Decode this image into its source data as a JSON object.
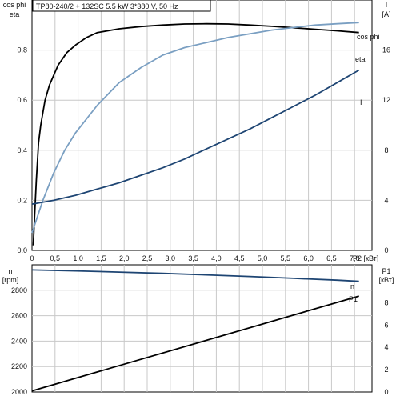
{
  "header": {
    "title": "TP80-240/2 + 132SC   5.5 kW   3*380 V, 50 Hz"
  },
  "colors": {
    "eta": "#000000",
    "cos_phi": "#7a9fc2",
    "current": "#1e4573",
    "speed": "#1e4573",
    "p1": "#000000",
    "grid": "#c8c8c8",
    "axis": "#000000"
  },
  "chart_data": [
    {
      "type": "line",
      "name": "performance",
      "grid": true,
      "xlabel": "P2 [кВт]",
      "xticks": [
        "0",
        "0,5",
        "1,0",
        "1,5",
        "2,0",
        "2,5",
        "3,0",
        "3,5",
        "4,0",
        "4,5",
        "5,0",
        "5,5",
        "6,0",
        "6,5",
        "7,0"
      ],
      "xlim": [
        0,
        7.8
      ],
      "left_axis": {
        "label_top": "cos phi",
        "label_bottom": "eta",
        "ylim": [
          0,
          1.0
        ],
        "ticks": [
          "0.0",
          "0.2",
          "0.4",
          "0.6",
          "0.8"
        ]
      },
      "right_axis": {
        "label_top": "I",
        "label_bottom": "[A]",
        "ylim": [
          0,
          20
        ],
        "ticks": [
          "0",
          "4",
          "8",
          "12",
          "16"
        ]
      },
      "series": [
        {
          "name": "eta",
          "label": "eta",
          "axis": "left",
          "color_key": "eta",
          "x": [
            0.03,
            0.05,
            0.1,
            0.15,
            0.2,
            0.3,
            0.4,
            0.5,
            0.6,
            0.8,
            1.0,
            1.25,
            1.5,
            2.0,
            2.5,
            3.0,
            3.5,
            4.0,
            4.5,
            5.0,
            5.5,
            6.0,
            6.5,
            7.0,
            7.5
          ],
          "y": [
            0.02,
            0.1,
            0.28,
            0.43,
            0.5,
            0.6,
            0.66,
            0.7,
            0.74,
            0.79,
            0.82,
            0.85,
            0.87,
            0.885,
            0.894,
            0.9,
            0.904,
            0.905,
            0.904,
            0.9,
            0.895,
            0.889,
            0.883,
            0.877,
            0.87
          ]
        },
        {
          "name": "cos phi",
          "label": "cos phi",
          "axis": "left",
          "color_key": "cos_phi",
          "x": [
            0.0,
            0.25,
            0.5,
            0.75,
            1.0,
            1.5,
            2.0,
            2.5,
            3.0,
            3.5,
            4.0,
            4.5,
            5.0,
            5.5,
            6.0,
            6.5,
            7.0,
            7.5
          ],
          "y": [
            0.07,
            0.2,
            0.31,
            0.4,
            0.47,
            0.58,
            0.67,
            0.73,
            0.78,
            0.81,
            0.83,
            0.85,
            0.865,
            0.88,
            0.89,
            0.9,
            0.905,
            0.91
          ]
        },
        {
          "name": "I",
          "label": "I",
          "axis": "right",
          "color_key": "current",
          "x": [
            0.0,
            0.5,
            1.0,
            1.5,
            2.0,
            2.5,
            3.0,
            3.5,
            4.0,
            4.5,
            5.0,
            5.5,
            6.0,
            6.5,
            7.0,
            7.5
          ],
          "y": [
            3.7,
            4.0,
            4.4,
            4.9,
            5.4,
            6.0,
            6.6,
            7.3,
            8.1,
            8.9,
            9.7,
            10.6,
            11.5,
            12.4,
            13.4,
            14.4
          ]
        }
      ]
    },
    {
      "type": "line",
      "name": "speed_power",
      "grid": true,
      "left_axis": {
        "label_top": "n",
        "label_bottom": "[rpm]",
        "ylim": [
          2000,
          3000
        ],
        "ticks": [
          "2000",
          "2200",
          "2400",
          "2600",
          "2800"
        ]
      },
      "right_axis": {
        "label_top": "P1",
        "label_bottom": "[кВт]",
        "ylim": [
          0,
          11.4
        ],
        "ticks": [
          "0",
          "2",
          "4",
          "6",
          "8"
        ]
      },
      "xlim": [
        0,
        7.8
      ],
      "series": [
        {
          "name": "n",
          "label": "n",
          "axis": "left",
          "color_key": "speed",
          "x": [
            0.0,
            1.0,
            2.0,
            3.0,
            4.0,
            5.0,
            6.0,
            7.0,
            7.5
          ],
          "y": [
            2960,
            2952,
            2943,
            2933,
            2921,
            2908,
            2894,
            2879,
            2870
          ]
        },
        {
          "name": "P1",
          "label": "P1",
          "axis": "right",
          "color_key": "p1",
          "x": [
            0.0,
            7.5
          ],
          "y": [
            0.1,
            8.6
          ]
        }
      ]
    }
  ]
}
